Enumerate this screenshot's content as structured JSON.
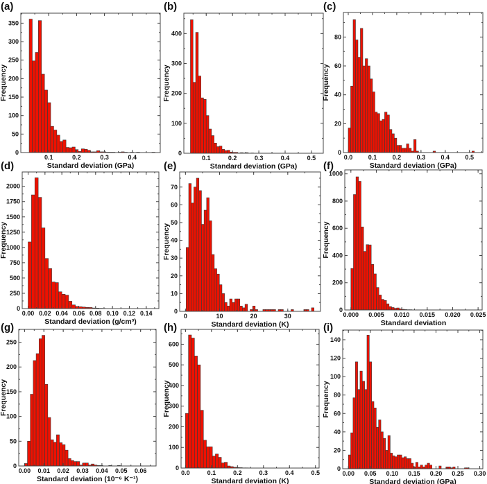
{
  "chart_data": [
    {
      "panel": "(a)",
      "type": "bar",
      "xlabel": "Standard deviation (GPa)",
      "ylabel": "Frequency",
      "xlim": [
        0,
        0.5
      ],
      "ylim": [
        0,
        377
      ],
      "xticks": [
        0.1,
        0.2,
        0.3,
        0.4
      ],
      "xtick_labels": [
        "0.1",
        "0.2",
        "0.3",
        "0.4"
      ],
      "yticks": [
        0,
        50,
        100,
        150,
        200,
        250,
        300,
        350
      ],
      "bin_start": 0.03,
      "bin_width": 0.011,
      "values": [
        361,
        248,
        271,
        357,
        212,
        169,
        135,
        71,
        61,
        47,
        30,
        34,
        14,
        13,
        15,
        8,
        3,
        10,
        9,
        6,
        2,
        2,
        5,
        2,
        2,
        1,
        1,
        1,
        0,
        1,
        2,
        1,
        0,
        1,
        0,
        1,
        0,
        0,
        0,
        0,
        1
      ]
    },
    {
      "panel": "(b)",
      "type": "bar",
      "xlabel": "Standard deviation (GPa)",
      "ylabel": "Frequency",
      "xlim": [
        0.015,
        0.545
      ],
      "ylim": [
        0,
        468
      ],
      "xticks": [
        0.1,
        0.2,
        0.3,
        0.4,
        0.5
      ],
      "xtick_labels": [
        "0.1",
        "0.2",
        "0.3",
        "0.4",
        "0.5"
      ],
      "yticks": [
        0,
        100,
        200,
        300,
        400
      ],
      "bin_start": 0.04,
      "bin_width": 0.01,
      "values": [
        446,
        237,
        404,
        258,
        185,
        180,
        126,
        81,
        59,
        34,
        22,
        24,
        13,
        9,
        10,
        4,
        3,
        3,
        1,
        2,
        1,
        2,
        0,
        1
      ]
    },
    {
      "panel": "(c)",
      "type": "bar",
      "xlabel": "Standard deviation (GPa)",
      "ylabel": "Frequency",
      "xlim": [
        -0.02,
        0.555
      ],
      "ylim": [
        0,
        97
      ],
      "xticks": [
        0,
        0.1,
        0.2,
        0.3,
        0.4,
        0.5
      ],
      "xtick_labels": [
        "0.0",
        "0.1",
        "0.2",
        "0.3",
        "0.4",
        "0.5"
      ],
      "yticks": [
        0,
        20,
        40,
        60,
        80
      ],
      "bin_start": 0.0,
      "bin_width": 0.01,
      "values": [
        17,
        46,
        92,
        78,
        66,
        86,
        60,
        65,
        60,
        51,
        42,
        28,
        27,
        22,
        23,
        28,
        26,
        16,
        13,
        10,
        5,
        5,
        3,
        3,
        6,
        3,
        1,
        9,
        1,
        0,
        0,
        0,
        0,
        0,
        0,
        1,
        0,
        0,
        0,
        0,
        0,
        0,
        0,
        0,
        0,
        0,
        0,
        0,
        0,
        0,
        0,
        1
      ]
    },
    {
      "panel": "(d)",
      "type": "bar",
      "xlabel": "Standard deviation (g/cm³)",
      "ylabel": "Frequency",
      "xlim": [
        -0.007,
        0.155
      ],
      "ylim": [
        0,
        2235
      ],
      "xticks": [
        0,
        0.02,
        0.04,
        0.06,
        0.08,
        0.1,
        0.12,
        0.14
      ],
      "xtick_labels": [
        "0.00",
        "0.02",
        "0.04",
        "0.06",
        "0.08",
        "0.10",
        "0.12",
        "0.14"
      ],
      "yticks": [
        0,
        250,
        500,
        750,
        1000,
        1250,
        1500,
        1750,
        2000
      ],
      "bin_start": 0.0,
      "bin_width": 0.004,
      "values": [
        1090,
        1860,
        2140,
        1820,
        1320,
        820,
        655,
        435,
        425,
        275,
        235,
        220,
        120,
        60,
        35,
        30,
        25,
        20,
        18,
        10,
        8,
        5,
        3,
        2
      ]
    },
    {
      "panel": "(e)",
      "type": "bar",
      "xlabel": "Standard deviation (K)",
      "ylabel": "Frequency",
      "xlim": [
        -1.7,
        39.6
      ],
      "ylim": [
        0,
        78.5
      ],
      "xticks": [
        0,
        10,
        20,
        30
      ],
      "xtick_labels": [
        "0",
        "10",
        "20",
        "30"
      ],
      "yticks": [
        0,
        10,
        20,
        30,
        40,
        50,
        60,
        70
      ],
      "bin_start": 0.2,
      "bin_width": 0.75,
      "values": [
        36,
        72,
        61,
        70,
        75,
        68,
        49,
        57,
        64,
        51,
        32,
        24,
        21,
        15,
        10,
        5,
        3,
        7,
        5,
        7,
        7,
        3,
        2,
        4,
        0,
        1,
        3,
        1,
        0,
        0,
        1,
        1,
        1,
        1,
        1,
        0,
        1,
        1,
        0,
        0,
        0,
        1,
        0,
        0,
        0,
        0,
        1,
        1,
        0,
        2
      ]
    },
    {
      "panel": "(f)",
      "type": "bar",
      "xlabel": "Standard deviation",
      "ylabel": "Frequency",
      "xlim": [
        -0.0012,
        0.0258
      ],
      "ylim": [
        0,
        1029
      ],
      "xticks": [
        0,
        0.005,
        0.01,
        0.015,
        0.02,
        0.025
      ],
      "xtick_labels": [
        "0.000",
        "0.005",
        "0.010",
        "0.015",
        "0.020",
        "0.025"
      ],
      "yticks": [
        0,
        200,
        400,
        600,
        800,
        1000
      ],
      "bin_start": 0.0,
      "bin_width": 0.0005,
      "values": [
        305,
        848,
        978,
        945,
        610,
        430,
        480,
        478,
        335,
        265,
        165,
        110,
        78,
        70,
        45,
        25,
        18,
        12,
        15,
        8,
        5,
        3,
        2,
        2,
        1,
        1
      ]
    },
    {
      "panel": "(g)",
      "type": "bar",
      "xlabel": "Standard deviation (10⁻⁶ K⁻¹)",
      "ylabel": "Frequency",
      "xlim": [
        -0.003,
        0.068
      ],
      "ylim": [
        0,
        276
      ],
      "xticks": [
        0,
        0.01,
        0.02,
        0.03,
        0.04,
        0.05,
        0.06
      ],
      "xtick_labels": [
        "0.00",
        "0.01",
        "0.02",
        "0.03",
        "0.04",
        "0.05",
        "0.06"
      ],
      "yticks": [
        0,
        50,
        100,
        150,
        200,
        250
      ],
      "bin_start": 0.0,
      "bin_width": 0.0015,
      "values": [
        5,
        50,
        145,
        213,
        227,
        257,
        264,
        165,
        98,
        53,
        48,
        63,
        47,
        43,
        32,
        15,
        11,
        9,
        9,
        2,
        6,
        6,
        2,
        4,
        2,
        1,
        1,
        0,
        0,
        1,
        0,
        0,
        1
      ]
    },
    {
      "panel": "(h)",
      "type": "bar",
      "xlabel": "Standard deviation (K)",
      "ylabel": "Frequency",
      "xlim": [
        -0.017,
        0.514
      ],
      "ylim": [
        0,
        672
      ],
      "xticks": [
        0,
        0.1,
        0.2,
        0.3,
        0.4,
        0.5
      ],
      "xtick_labels": [
        "0.0",
        "0.1",
        "0.2",
        "0.3",
        "0.4",
        "0.5"
      ],
      "yticks": [
        0,
        100,
        200,
        300,
        400,
        500,
        600
      ],
      "bin_start": 0.0,
      "bin_width": 0.0115,
      "values": [
        265,
        645,
        630,
        543,
        500,
        280,
        135,
        103,
        103,
        58,
        68,
        52,
        25,
        28,
        10,
        7,
        4,
        3,
        2,
        1,
        1
      ]
    },
    {
      "panel": "(i)",
      "type": "bar",
      "xlabel": "Standard deviation (GPa)",
      "ylabel": "Frequency",
      "xlim": [
        -0.013,
        0.307
      ],
      "ylim": [
        0,
        150.5
      ],
      "xticks": [
        0,
        0.05,
        0.1,
        0.15,
        0.2,
        0.25,
        0.3
      ],
      "xtick_labels": [
        "0.00",
        "0.05",
        "0.10",
        "0.15",
        "0.20",
        "0.25",
        "0.30"
      ],
      "yticks": [
        0,
        20,
        40,
        60,
        80,
        100,
        120,
        140
      ],
      "bin_start": 0.0,
      "bin_width": 0.0053,
      "values": [
        15,
        39,
        77,
        116,
        86,
        106,
        95,
        86,
        145,
        116,
        73,
        66,
        45,
        53,
        40,
        33,
        20,
        36,
        17,
        14,
        13,
        15,
        15,
        12,
        13,
        11,
        11,
        6,
        2,
        7,
        2,
        4,
        2,
        4,
        6,
        4,
        0,
        0,
        0,
        3,
        0,
        0,
        2,
        2,
        1,
        2,
        0,
        0,
        0,
        0,
        1,
        1
      ]
    }
  ],
  "colors": {
    "bar_fill": "#ee1100",
    "bar_edge": "#3a3a3a",
    "axis": "#444444"
  }
}
